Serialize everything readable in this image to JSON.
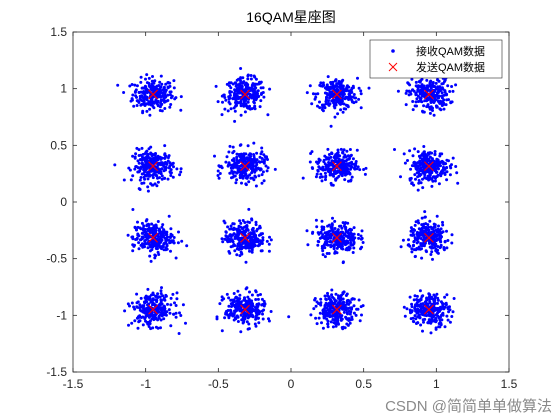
{
  "chart_data": {
    "type": "scatter",
    "title": "16QAM星座图",
    "xlabel": "",
    "ylabel": "",
    "xlim": [
      -1.5,
      1.5
    ],
    "ylim": [
      -1.5,
      1.5
    ],
    "xticks": [
      "-1.5",
      "-1",
      "-0.5",
      "0",
      "0.5",
      "1",
      "1.5"
    ],
    "yticks": [
      "-1.5",
      "-1",
      "-0.5",
      "0",
      "0.5",
      "1",
      "1.5"
    ],
    "grid": false,
    "legend_position": "top-right",
    "points_per_cluster": 250,
    "series": [
      {
        "name": "接收QAM数据",
        "marker": "dot",
        "color": "#0000ff",
        "note_spread_std": 0.07,
        "centers": [
          [
            -0.949,
            0.949
          ],
          [
            -0.316,
            0.949
          ],
          [
            0.316,
            0.949
          ],
          [
            0.949,
            0.949
          ],
          [
            -0.949,
            0.316
          ],
          [
            -0.316,
            0.316
          ],
          [
            0.316,
            0.316
          ],
          [
            0.949,
            0.316
          ],
          [
            -0.949,
            -0.316
          ],
          [
            -0.316,
            -0.316
          ],
          [
            0.316,
            -0.316
          ],
          [
            0.949,
            -0.316
          ],
          [
            -0.949,
            -0.949
          ],
          [
            -0.316,
            -0.949
          ],
          [
            0.316,
            -0.949
          ],
          [
            0.949,
            -0.949
          ]
        ]
      },
      {
        "name": "发送QAM数据",
        "marker": "x",
        "color": "#ff0000",
        "points": [
          [
            -0.949,
            0.949
          ],
          [
            -0.316,
            0.949
          ],
          [
            0.316,
            0.949
          ],
          [
            0.949,
            0.949
          ],
          [
            -0.949,
            0.316
          ],
          [
            -0.316,
            0.316
          ],
          [
            0.316,
            0.316
          ],
          [
            0.949,
            0.316
          ],
          [
            -0.949,
            -0.316
          ],
          [
            -0.316,
            -0.316
          ],
          [
            0.316,
            -0.316
          ],
          [
            0.949,
            -0.316
          ],
          [
            -0.949,
            -0.949
          ],
          [
            -0.316,
            -0.949
          ],
          [
            0.316,
            -0.949
          ],
          [
            0.949,
            -0.949
          ]
        ]
      }
    ]
  },
  "watermark": "CSDN @简简单单做算法"
}
